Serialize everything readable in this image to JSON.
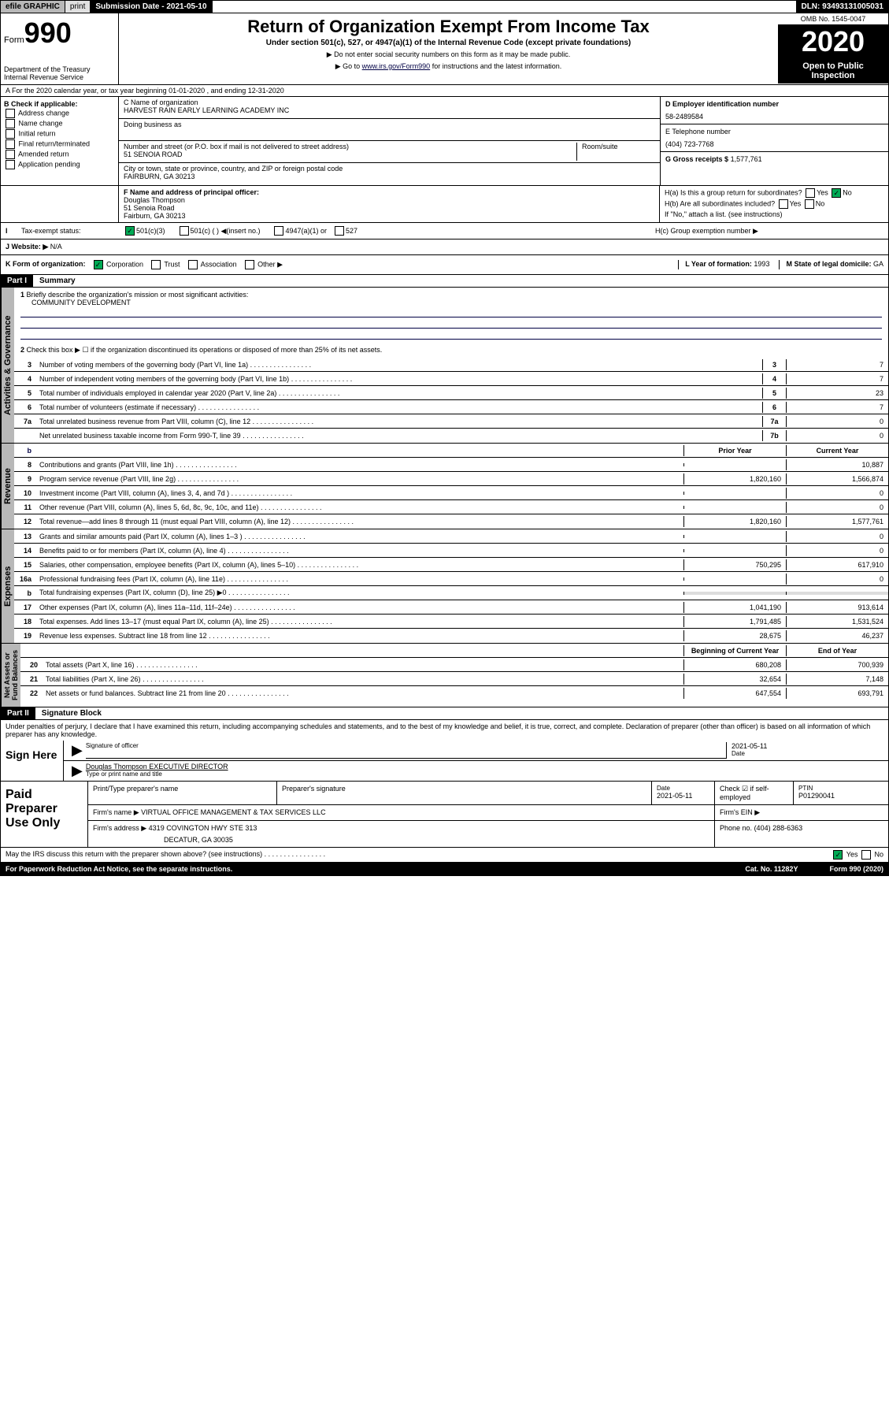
{
  "topbar": {
    "efile": "efile GRAPHIC",
    "print": "print",
    "submission": "Submission Date - 2021-05-10",
    "dln": "DLN: 93493131005031"
  },
  "header": {
    "form_word": "Form",
    "form_no": "990",
    "dept": "Department of the Treasury\nInternal Revenue Service",
    "title": "Return of Organization Exempt From Income Tax",
    "subtitle": "Under section 501(c), 527, or 4947(a)(1) of the Internal Revenue Code (except private foundations)",
    "note1": "▶ Do not enter social security numbers on this form as it may be made public.",
    "note2_pre": "▶ Go to ",
    "note2_link": "www.irs.gov/Form990",
    "note2_post": " for instructions and the latest information.",
    "omb": "OMB No. 1545-0047",
    "year": "2020",
    "inspection": "Open to Public\nInspection"
  },
  "section_a": "A For the 2020 calendar year, or tax year beginning 01-01-2020    , and ending 12-31-2020",
  "col_b": {
    "heading": "B Check if applicable:",
    "opts": [
      "Address change",
      "Name change",
      "Initial return",
      "Final return/terminated",
      "Amended return",
      "Application pending"
    ]
  },
  "col_c": {
    "name_label": "C Name of organization",
    "name": "HARVEST RAIN EARLY LEARNING ACADEMY INC",
    "dba_label": "Doing business as",
    "addr_label": "Number and street (or P.O. box if mail is not delivered to street address)",
    "room_label": "Room/suite",
    "addr": "51 SENOIA ROAD",
    "city_label": "City or town, state or province, country, and ZIP or foreign postal code",
    "city": "FAIRBURN, GA  30213",
    "f_label": "F Name and address of principal officer:",
    "f_name": "Douglas Thompson",
    "f_addr1": "51 Senoia Road",
    "f_addr2": "Fairburn, GA  30213"
  },
  "col_d": {
    "d_label": "D Employer identification number",
    "ein": "58-2489584",
    "e_label": "E Telephone number",
    "phone": "(404) 723-7768",
    "g_label": "G Gross receipts $",
    "g_val": "1,577,761",
    "ha_label": "H(a)  Is this a group return for subordinates?",
    "hb_label": "H(b)  Are all subordinates included?",
    "hb_note": "If \"No,\" attach a list. (see instructions)",
    "hc_label": "H(c)  Group exemption number ▶"
  },
  "tax_status": {
    "label": "Tax-exempt status:",
    "i": "I",
    "opt1": "501(c)(3)",
    "opt2": "501(c) (  ) ◀(insert no.)",
    "opt3": "4947(a)(1) or",
    "opt4": "527"
  },
  "website": {
    "label": "J   Website: ▶",
    "val": "N/A"
  },
  "k_row": {
    "k": "K Form of organization:",
    "opts": [
      "Corporation",
      "Trust",
      "Association",
      "Other ▶"
    ],
    "l": "L Year of formation: ",
    "l_val": "1993",
    "m": "M State of legal domicile: ",
    "m_val": "GA"
  },
  "part1": {
    "header": "Part I",
    "title": "Summary"
  },
  "summary": {
    "q1": "Briefly describe the organization's mission or most significant activities:",
    "q1_ans": "COMMUNITY DEVELOPMENT",
    "q2": "Check this box ▶ ☐  if the organization discontinued its operations or disposed of more than 25% of its net assets.",
    "lines": [
      {
        "no": "3",
        "desc": "Number of voting members of the governing body (Part VI, line 1a)",
        "box": "3",
        "val": "7"
      },
      {
        "no": "4",
        "desc": "Number of independent voting members of the governing body (Part VI, line 1b)",
        "box": "4",
        "val": "7"
      },
      {
        "no": "5",
        "desc": "Total number of individuals employed in calendar year 2020 (Part V, line 2a)",
        "box": "5",
        "val": "23"
      },
      {
        "no": "6",
        "desc": "Total number of volunteers (estimate if necessary)",
        "box": "6",
        "val": "7"
      },
      {
        "no": "7a",
        "desc": "Total unrelated business revenue from Part VIII, column (C), line 12",
        "box": "7a",
        "val": "0"
      },
      {
        "no": "",
        "desc": "Net unrelated business taxable income from Form 990-T, line 39",
        "box": "7b",
        "val": "0"
      }
    ],
    "col_prior": "Prior Year",
    "col_current": "Current Year",
    "revenue": [
      {
        "no": "8",
        "desc": "Contributions and grants (Part VIII, line 1h)",
        "prior": "",
        "curr": "10,887"
      },
      {
        "no": "9",
        "desc": "Program service revenue (Part VIII, line 2g)",
        "prior": "1,820,160",
        "curr": "1,566,874"
      },
      {
        "no": "10",
        "desc": "Investment income (Part VIII, column (A), lines 3, 4, and 7d )",
        "prior": "",
        "curr": "0"
      },
      {
        "no": "11",
        "desc": "Other revenue (Part VIII, column (A), lines 5, 6d, 8c, 9c, 10c, and 11e)",
        "prior": "",
        "curr": "0"
      },
      {
        "no": "12",
        "desc": "Total revenue—add lines 8 through 11 (must equal Part VIII, column (A), line 12)",
        "prior": "1,820,160",
        "curr": "1,577,761"
      }
    ],
    "expenses": [
      {
        "no": "13",
        "desc": "Grants and similar amounts paid (Part IX, column (A), lines 1–3 )",
        "prior": "",
        "curr": "0"
      },
      {
        "no": "14",
        "desc": "Benefits paid to or for members (Part IX, column (A), line 4)",
        "prior": "",
        "curr": "0"
      },
      {
        "no": "15",
        "desc": "Salaries, other compensation, employee benefits (Part IX, column (A), lines 5–10)",
        "prior": "750,295",
        "curr": "617,910"
      },
      {
        "no": "16a",
        "desc": "Professional fundraising fees (Part IX, column (A), line 11e)",
        "prior": "",
        "curr": "0"
      },
      {
        "no": "b",
        "desc": "Total fundraising expenses (Part IX, column (D), line 25) ▶0",
        "prior": "",
        "curr": ""
      },
      {
        "no": "17",
        "desc": "Other expenses (Part IX, column (A), lines 11a–11d, 11f–24e)",
        "prior": "1,041,190",
        "curr": "913,614"
      },
      {
        "no": "18",
        "desc": "Total expenses. Add lines 13–17 (must equal Part IX, column (A), line 25)",
        "prior": "1,791,485",
        "curr": "1,531,524"
      },
      {
        "no": "19",
        "desc": "Revenue less expenses. Subtract line 18 from line 12",
        "prior": "28,675",
        "curr": "46,237"
      }
    ],
    "col_begin": "Beginning of Current Year",
    "col_end": "End of Year",
    "assets": [
      {
        "no": "20",
        "desc": "Total assets (Part X, line 16)",
        "prior": "680,208",
        "curr": "700,939"
      },
      {
        "no": "21",
        "desc": "Total liabilities (Part X, line 26)",
        "prior": "32,654",
        "curr": "7,148"
      },
      {
        "no": "22",
        "desc": "Net assets or fund balances. Subtract line 21 from line 20",
        "prior": "647,554",
        "curr": "693,791"
      }
    ]
  },
  "tabs": {
    "governance": "Activities & Governance",
    "revenue": "Revenue",
    "expenses": "Expenses",
    "assets": "Net Assets or\nFund Balances"
  },
  "part2": {
    "header": "Part II",
    "title": "Signature Block"
  },
  "sig": {
    "declaration": "Under penalties of perjury, I declare that I have examined this return, including accompanying schedules and statements, and to the best of my knowledge and belief, it is true, correct, and complete. Declaration of preparer (other than officer) is based on all information of which preparer has any knowledge.",
    "sign_here": "Sign Here",
    "sig_officer": "Signature of officer",
    "date": "2021-05-11",
    "date_label": "Date",
    "typed": "Douglas Thompson  EXECUTIVE DIRECTOR",
    "typed_label": "Type or print name and title"
  },
  "paid": {
    "label": "Paid Preparer Use Only",
    "h1": "Print/Type preparer's name",
    "h2": "Preparer's signature",
    "h3": "Date",
    "h3_val": "2021-05-11",
    "h4": "Check ☑ if self-employed",
    "h5": "PTIN",
    "ptin": "P01290041",
    "firm_name_label": "Firm's name     ▶",
    "firm_name": "VIRTUAL OFFICE MANAGEMENT & TAX SERVICES LLC",
    "firm_ein_label": "Firm's EIN ▶",
    "firm_addr_label": "Firm's address ▶",
    "firm_addr": "4319 COVINGTON HWY STE 313",
    "firm_city": "DECATUR, GA  30035",
    "phone_label": "Phone no.",
    "phone": "(404) 288-6363"
  },
  "footer": {
    "discuss": "May the IRS discuss this return with the preparer shown above? (see instructions)",
    "yes": "Yes",
    "no": "No",
    "paperwork": "For Paperwork Reduction Act Notice, see the separate instructions.",
    "cat": "Cat. No. 11282Y",
    "form": "Form 990 (2020)"
  }
}
